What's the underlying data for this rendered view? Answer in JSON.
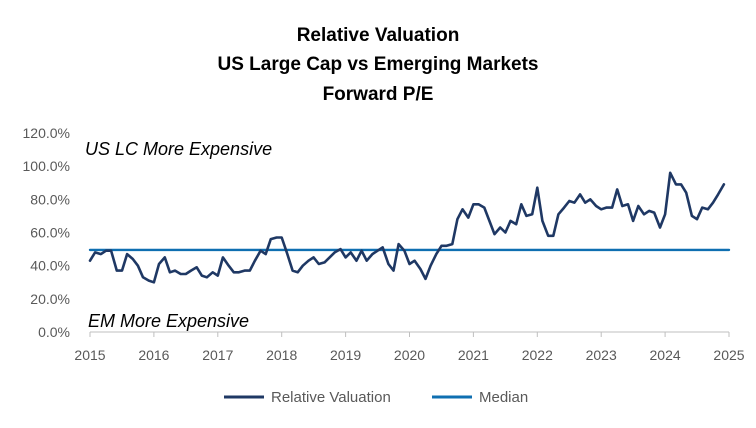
{
  "chart_data": {
    "type": "line",
    "title_lines": [
      "Relative Valuation",
      "US Large Cap vs Emerging Markets",
      "Forward P/E"
    ],
    "xlabel": "",
    "ylabel": "",
    "x_ticks": [
      "2015",
      "2016",
      "2017",
      "2018",
      "2019",
      "2020",
      "2021",
      "2022",
      "2023",
      "2024",
      "2025"
    ],
    "y_ticks": [
      "0.0%",
      "20.0%",
      "40.0%",
      "60.0%",
      "80.0%",
      "100.0%",
      "120.0%"
    ],
    "xlim": [
      2015,
      2025
    ],
    "ylim": [
      0,
      120
    ],
    "grid": false,
    "legend_position": "bottom",
    "annotations": {
      "top": "US LC More Expensive",
      "bottom": "EM More Expensive"
    },
    "series": [
      {
        "name": "Relative Valuation",
        "color": "#1f3864",
        "points": [
          [
            2015.0,
            43
          ],
          [
            2015.08,
            48
          ],
          [
            2015.17,
            47
          ],
          [
            2015.25,
            49
          ],
          [
            2015.33,
            49
          ],
          [
            2015.42,
            37
          ],
          [
            2015.5,
            37
          ],
          [
            2015.58,
            47
          ],
          [
            2015.67,
            44
          ],
          [
            2015.75,
            40
          ],
          [
            2015.83,
            33
          ],
          [
            2015.92,
            31
          ],
          [
            2016.0,
            30
          ],
          [
            2016.08,
            41
          ],
          [
            2016.17,
            45
          ],
          [
            2016.25,
            36
          ],
          [
            2016.33,
            37
          ],
          [
            2016.42,
            35
          ],
          [
            2016.5,
            35
          ],
          [
            2016.58,
            37
          ],
          [
            2016.67,
            39
          ],
          [
            2016.75,
            34
          ],
          [
            2016.83,
            33
          ],
          [
            2016.92,
            36
          ],
          [
            2017.0,
            34
          ],
          [
            2017.08,
            45
          ],
          [
            2017.17,
            40
          ],
          [
            2017.25,
            36
          ],
          [
            2017.33,
            36
          ],
          [
            2017.42,
            37
          ],
          [
            2017.5,
            37
          ],
          [
            2017.58,
            43
          ],
          [
            2017.67,
            49
          ],
          [
            2017.75,
            47
          ],
          [
            2017.83,
            56
          ],
          [
            2017.92,
            57
          ],
          [
            2018.0,
            57
          ],
          [
            2018.08,
            48
          ],
          [
            2018.17,
            37
          ],
          [
            2018.25,
            36
          ],
          [
            2018.33,
            40
          ],
          [
            2018.42,
            43
          ],
          [
            2018.5,
            45
          ],
          [
            2018.58,
            41
          ],
          [
            2018.67,
            42
          ],
          [
            2018.75,
            45
          ],
          [
            2018.83,
            48
          ],
          [
            2018.92,
            50
          ],
          [
            2019.0,
            45
          ],
          [
            2019.08,
            48
          ],
          [
            2019.17,
            43
          ],
          [
            2019.25,
            49
          ],
          [
            2019.33,
            43
          ],
          [
            2019.42,
            47
          ],
          [
            2019.5,
            49
          ],
          [
            2019.58,
            51
          ],
          [
            2019.67,
            41
          ],
          [
            2019.75,
            37
          ],
          [
            2019.83,
            53
          ],
          [
            2019.92,
            49
          ],
          [
            2020.0,
            41
          ],
          [
            2020.08,
            43
          ],
          [
            2020.17,
            38
          ],
          [
            2020.25,
            32
          ],
          [
            2020.33,
            40
          ],
          [
            2020.42,
            47
          ],
          [
            2020.5,
            52
          ],
          [
            2020.58,
            52
          ],
          [
            2020.67,
            53
          ],
          [
            2020.75,
            68
          ],
          [
            2020.83,
            74
          ],
          [
            2020.92,
            69
          ],
          [
            2021.0,
            77
          ],
          [
            2021.08,
            77
          ],
          [
            2021.17,
            75
          ],
          [
            2021.25,
            67
          ],
          [
            2021.33,
            59
          ],
          [
            2021.42,
            63
          ],
          [
            2021.5,
            60
          ],
          [
            2021.58,
            67
          ],
          [
            2021.67,
            65
          ],
          [
            2021.75,
            77
          ],
          [
            2021.83,
            70
          ],
          [
            2021.92,
            71
          ],
          [
            2022.0,
            87
          ],
          [
            2022.08,
            67
          ],
          [
            2022.17,
            58
          ],
          [
            2022.25,
            58
          ],
          [
            2022.33,
            71
          ],
          [
            2022.42,
            75
          ],
          [
            2022.5,
            79
          ],
          [
            2022.58,
            78
          ],
          [
            2022.67,
            83
          ],
          [
            2022.75,
            78
          ],
          [
            2022.83,
            80
          ],
          [
            2022.92,
            76
          ],
          [
            2023.0,
            74
          ],
          [
            2023.08,
            75
          ],
          [
            2023.17,
            75
          ],
          [
            2023.25,
            86
          ],
          [
            2023.33,
            76
          ],
          [
            2023.42,
            77
          ],
          [
            2023.5,
            67
          ],
          [
            2023.58,
            76
          ],
          [
            2023.67,
            71
          ],
          [
            2023.75,
            73
          ],
          [
            2023.83,
            72
          ],
          [
            2023.92,
            63
          ],
          [
            2024.0,
            71
          ],
          [
            2024.08,
            96
          ],
          [
            2024.17,
            89
          ],
          [
            2024.25,
            89
          ],
          [
            2024.33,
            84
          ],
          [
            2024.42,
            70
          ],
          [
            2024.5,
            68
          ],
          [
            2024.58,
            75
          ],
          [
            2024.67,
            74
          ],
          [
            2024.75,
            78
          ],
          [
            2024.83,
            83
          ],
          [
            2024.92,
            89
          ]
        ]
      },
      {
        "name": "Median",
        "color": "#0f6fb1",
        "points": [
          [
            2015.0,
            49.5
          ],
          [
            2025.0,
            49.5
          ]
        ]
      }
    ]
  }
}
